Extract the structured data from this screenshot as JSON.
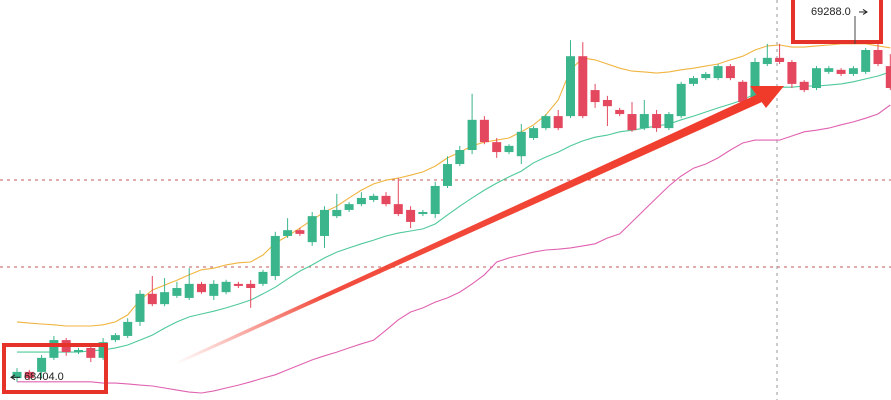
{
  "chart_data": {
    "type": "candlestick",
    "up_color": "#3bb58c",
    "down_color": "#e4485f",
    "ylim": [
      68349,
      69317
    ],
    "open": [
      68402,
      68417,
      68417,
      68451,
      68494,
      68465,
      68475,
      68451,
      68494,
      68504,
      68538,
      68606,
      68581,
      68601,
      68596,
      68630,
      68601,
      68610,
      68630,
      68630,
      68630,
      68649,
      68746,
      68760,
      68731,
      68746,
      68794,
      68809,
      68823,
      68833,
      68843,
      68823,
      68809,
      68799,
      68799,
      68867,
      68920,
      68954,
      69027,
      68973,
      68949,
      68939,
      68983,
      69007,
      69036,
      69036,
      69181,
      69099,
      69075,
      69051,
      69041,
      69007,
      69041,
      69007,
      69036,
      69114,
      69128,
      69128,
      69157,
      69119,
      69080,
      69162,
      69177,
      69167,
      69119,
      69104,
      69143,
      69148,
      69138,
      69143,
      69196,
      69157
    ],
    "high": [
      68426,
      68422,
      68458,
      68504,
      68499,
      68475,
      68485,
      68499,
      68511,
      68547,
      68615,
      68649,
      68644,
      68635,
      68668,
      68635,
      68639,
      68640,
      68635,
      68639,
      68664,
      68756,
      68789,
      68765,
      68804,
      68818,
      68848,
      68828,
      68852,
      68848,
      68852,
      68886,
      68818,
      68809,
      68877,
      68939,
      68964,
      69090,
      69036,
      68983,
      68968,
      69017,
      69012,
      69041,
      69051,
      69220,
      69215,
      69114,
      69085,
      69056,
      69070,
      69075,
      69051,
      69046,
      69119,
      69133,
      69143,
      69162,
      69162,
      69123,
      69177,
      69211,
      69211,
      69172,
      69123,
      69157,
      69157,
      69152,
      69157,
      69201,
      69215,
      69186
    ],
    "low": [
      68393,
      68397,
      68402,
      68446,
      68456,
      68460,
      68441,
      68446,
      68489,
      68499,
      68528,
      68576,
      68576,
      68596,
      68591,
      68606,
      68591,
      68605,
      68620,
      68572,
      68625,
      68639,
      68741,
      68746,
      68722,
      68717,
      68789,
      68804,
      68818,
      68828,
      68818,
      68794,
      68765,
      68794,
      68789,
      68862,
      68915,
      68944,
      68968,
      68935,
      68944,
      68920,
      68978,
      69002,
      69002,
      69031,
      69031,
      69056,
      69012,
      69036,
      68998,
      69002,
      68998,
      69002,
      69031,
      69109,
      69123,
      69123,
      69123,
      69060,
      69070,
      69157,
      69162,
      69104,
      69094,
      69099,
      69138,
      69133,
      69133,
      69138,
      69157,
      69099
    ],
    "close": [
      68417,
      68402,
      68451,
      68494,
      68465,
      68470,
      68451,
      68489,
      68506,
      68538,
      68606,
      68581,
      68610,
      68620,
      68630,
      68610,
      68630,
      68635,
      68625,
      68620,
      68659,
      68746,
      68760,
      68751,
      68794,
      68809,
      68809,
      68823,
      68838,
      68843,
      68823,
      68799,
      68780,
      68804,
      68867,
      68920,
      68954,
      69027,
      68973,
      68949,
      68964,
      68998,
      69007,
      69036,
      69007,
      69181,
      69036,
      69070,
      69060,
      69041,
      69002,
      69041,
      69007,
      69041,
      69114,
      69128,
      69138,
      69157,
      69128,
      69070,
      69167,
      69177,
      69167,
      69114,
      69099,
      69152,
      69152,
      69138,
      69152,
      69196,
      69162,
      69104
    ],
    "overlays": [
      {
        "color": "#f0b440",
        "values": [
          68538,
          68535,
          68533,
          68531,
          68528,
          68528,
          68528,
          68531,
          68538,
          68555,
          68591,
          68615,
          68627,
          68639,
          68652,
          68664,
          68668,
          68676,
          68681,
          68683,
          68700,
          68729,
          68746,
          68765,
          68785,
          68804,
          68818,
          68838,
          68857,
          68872,
          68881,
          68886,
          68893,
          68901,
          68915,
          68935,
          68949,
          68964,
          68973,
          68978,
          68983,
          68998,
          69015,
          69039,
          69075,
          69148,
          69177,
          69172,
          69162,
          69152,
          69145,
          69143,
          69140,
          69143,
          69148,
          69152,
          69157,
          69162,
          69172,
          69181,
          69196,
          69206,
          69208,
          69203,
          69203,
          69206,
          69208,
          69211,
          69211,
          69211,
          69206,
          69201
        ]
      },
      {
        "color": "#4fc99a",
        "values": [
          68465,
          68465,
          68465,
          68465,
          68465,
          68465,
          68468,
          68470,
          68475,
          68482,
          68494,
          68506,
          68523,
          68538,
          68550,
          68557,
          68564,
          68572,
          68581,
          68591,
          68606,
          68622,
          68642,
          68661,
          68676,
          68693,
          68707,
          68717,
          68727,
          68736,
          68746,
          68753,
          68758,
          68763,
          68775,
          68797,
          68818,
          68838,
          68857,
          68874,
          68889,
          68903,
          68923,
          68937,
          68949,
          68964,
          68976,
          68985,
          68990,
          68998,
          69002,
          69007,
          69012,
          69017,
          69027,
          69036,
          69046,
          69056,
          69065,
          69075,
          69090,
          69099,
          69106,
          69106,
          69109,
          69109,
          69111,
          69114,
          69119,
          69126,
          69133,
          69143
        ]
      },
      {
        "color": "#e062b0",
        "values": [
          68393,
          68393,
          68393,
          68393,
          68393,
          68393,
          68393,
          68390,
          68390,
          68388,
          68385,
          68383,
          68378,
          68373,
          68368,
          68366,
          68371,
          68378,
          68385,
          68393,
          68402,
          68410,
          68422,
          68434,
          68446,
          68456,
          68465,
          68475,
          68485,
          68494,
          68518,
          68543,
          68562,
          68572,
          68586,
          68596,
          68610,
          68630,
          68652,
          68683,
          68693,
          68700,
          68707,
          68712,
          68714,
          68717,
          68722,
          68727,
          68741,
          68751,
          68780,
          68809,
          68838,
          68867,
          68891,
          68910,
          68920,
          68935,
          68954,
          68971,
          68978,
          68978,
          68978,
          68988,
          68998,
          69002,
          69007,
          69015,
          69022,
          69031,
          69041,
          69063
        ]
      }
    ],
    "price_markers": [
      {
        "value": 68404,
        "label": "68404.0"
      },
      {
        "value": 69288,
        "label": "69288.0"
      }
    ]
  }
}
